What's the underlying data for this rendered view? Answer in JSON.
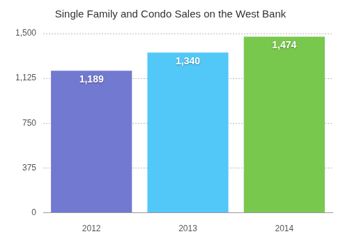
{
  "chart_data": {
    "type": "bar",
    "title": "Single Family and Condo Sales on the West Bank",
    "categories": [
      "2012",
      "2013",
      "2014"
    ],
    "values": [
      1189,
      1340,
      1474
    ],
    "value_labels": [
      "1,189",
      "1,340",
      "1,474"
    ],
    "colors": [
      "#7279d0",
      "#52c8f8",
      "#79c84e"
    ],
    "ylim": [
      0,
      1500
    ],
    "yticks": [
      0,
      375,
      750,
      {
        "value": 1125,
        "label": "1,125"
      },
      {
        "value": 1500,
        "label": "1,500"
      }
    ],
    "grid": true,
    "data_labels": true
  }
}
